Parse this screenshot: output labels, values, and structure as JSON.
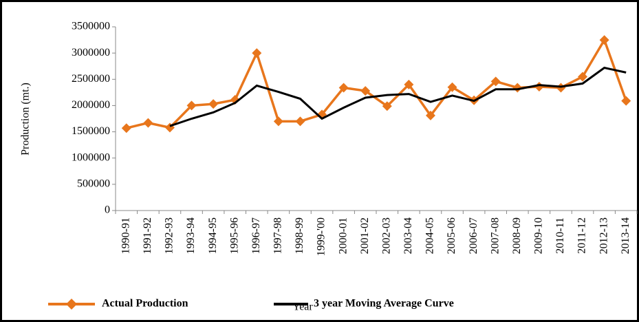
{
  "chart_data": {
    "type": "line",
    "y_label": "Production (mt.)",
    "x_label": "Year",
    "categories": [
      "1990-91",
      "1991-92",
      "1992-93",
      "1993-94",
      "1994-95",
      "1995-96",
      "1996-97",
      "1997-98",
      "1998-99",
      "1999-'00",
      "2000-01",
      "2001-02",
      "2002-03",
      "2003-04",
      "2004-05",
      "2005-06",
      "2006-07",
      "2007-08",
      "2008-09",
      "2009-10",
      "2010-11",
      "2011-12",
      "2012-13",
      "2013-14"
    ],
    "series": [
      {
        "name": "Actual Production",
        "color": "#e8761c",
        "marker": "diamond",
        "values": [
          1570000,
          1670000,
          1580000,
          2000000,
          2030000,
          2110000,
          3000000,
          1700000,
          1700000,
          1830000,
          2340000,
          2280000,
          1990000,
          2400000,
          1810000,
          2350000,
          2100000,
          2460000,
          2340000,
          2360000,
          2340000,
          2550000,
          3250000,
          2090000
        ]
      },
      {
        "name": "3 year Moving Average Curve",
        "color": "#000000",
        "values": [
          null,
          null,
          1610000,
          1750000,
          1870000,
          2050000,
          2380000,
          2260000,
          2130000,
          1750000,
          1960000,
          2150000,
          2200000,
          2220000,
          2070000,
          2190000,
          2090000,
          2310000,
          2310000,
          2390000,
          2360000,
          2420000,
          2720000,
          2630000
        ]
      }
    ],
    "ylim": [
      0,
      3500000
    ],
    "yticks": [
      0,
      500000,
      1000000,
      1500000,
      2000000,
      2500000,
      3000000,
      3500000
    ]
  }
}
